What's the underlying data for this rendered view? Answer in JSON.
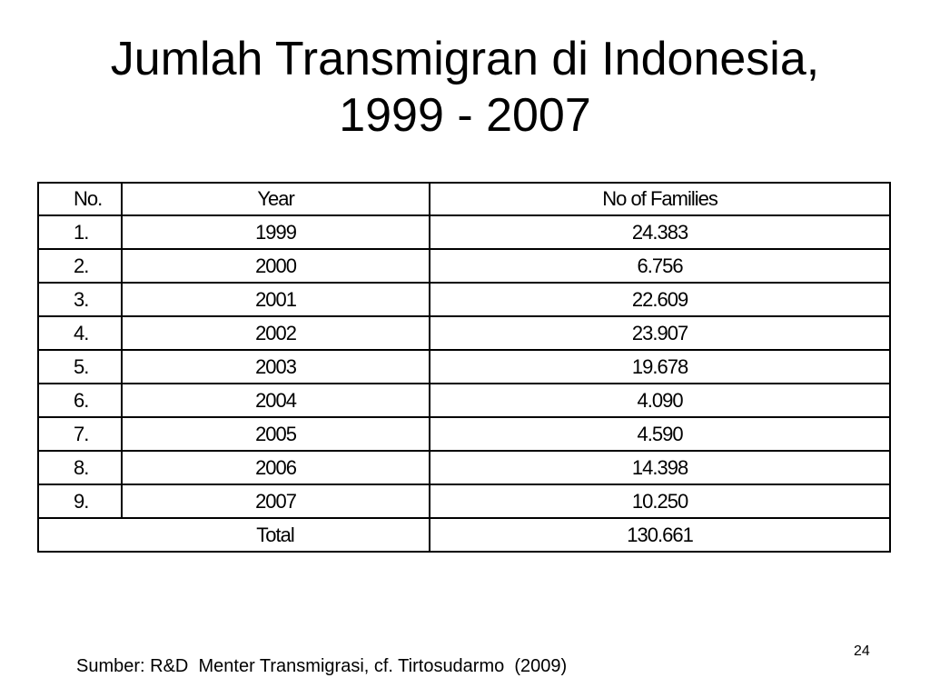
{
  "slide": {
    "title_line1": "Jumlah Transmigran di Indonesia,",
    "title_line2": "1999 - 2007",
    "source": "Sumber: R&D  Menter Transmigrasi, cf. Tirtosudarmo  (2009)",
    "slide_number": "24"
  },
  "table": {
    "headers": [
      "No.",
      "Year",
      "No of Families"
    ],
    "rows": [
      [
        "1.",
        "1999",
        "24.383"
      ],
      [
        "2.",
        "2000",
        "6.756"
      ],
      [
        "3.",
        "2001",
        "22.609"
      ],
      [
        "4.",
        "2002",
        "23.907"
      ],
      [
        "5.",
        "2003",
        "19.678"
      ],
      [
        "6.",
        "2004",
        "4.090"
      ],
      [
        "7.",
        "2005",
        "4.590"
      ],
      [
        "8.",
        "2006",
        "14.398"
      ],
      [
        "9.",
        "2007",
        "10.250"
      ]
    ],
    "total_label": "Total",
    "total_value": "130.661"
  }
}
